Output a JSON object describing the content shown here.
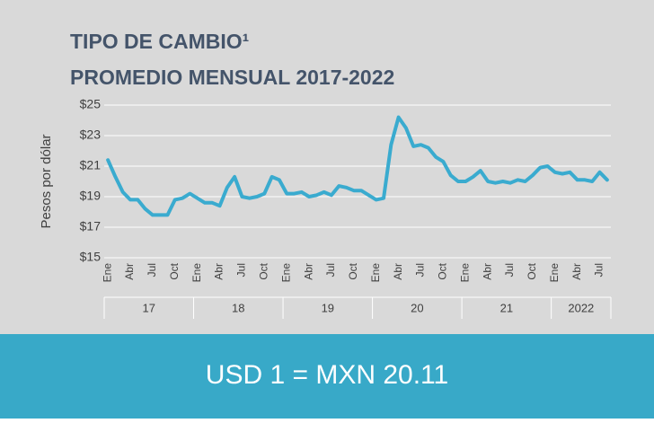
{
  "chart_data": {
    "type": "line",
    "title": "TIPO DE CAMBIO¹",
    "subtitle": "PROMEDIO MENSUAL 2017-2022",
    "y_label": "Pesos por dólar",
    "categories": [
      "Ene",
      null,
      null,
      "Abr",
      null,
      null,
      "Jul",
      null,
      null,
      "Oct",
      null,
      null,
      "Ene",
      null,
      null,
      "Abr",
      null,
      null,
      "Jul",
      null,
      null,
      "Oct",
      null,
      null,
      "Ene",
      null,
      null,
      "Abr",
      null,
      null,
      "Jul",
      null,
      null,
      "Oct",
      null,
      null,
      "Ene",
      null,
      null,
      "Abr",
      null,
      null,
      "Jul",
      null,
      null,
      "Oct",
      null,
      null,
      "Ene",
      null,
      null,
      "Abr",
      null,
      null,
      "Jul",
      null,
      null,
      "Oct",
      null,
      null,
      "Ene",
      null,
      null,
      "Abr",
      null,
      null,
      "Jul",
      null
    ],
    "year_groups": [
      "17",
      "18",
      "19",
      "20",
      "21",
      "2022"
    ],
    "color": "#3aabcf",
    "values": [
      21.4,
      20.3,
      19.3,
      18.8,
      18.8,
      18.2,
      17.8,
      17.8,
      17.8,
      18.8,
      18.9,
      19.2,
      18.9,
      18.6,
      18.6,
      18.4,
      19.6,
      20.3,
      19.0,
      18.9,
      19.0,
      19.2,
      20.3,
      20.1,
      19.2,
      19.2,
      19.3,
      19.0,
      19.1,
      19.3,
      19.1,
      19.7,
      19.6,
      19.4,
      19.4,
      19.1,
      18.8,
      18.9,
      22.4,
      24.2,
      23.5,
      22.3,
      22.4,
      22.2,
      21.6,
      21.3,
      20.4,
      20.0,
      20.0,
      20.3,
      20.7,
      20.0,
      19.9,
      20.0,
      19.9,
      20.1,
      20.0,
      20.4,
      20.9,
      21.0,
      20.6,
      20.5,
      20.6,
      20.1,
      20.1,
      20.0,
      20.6,
      20.1
    ],
    "ylim": [
      15,
      25
    ],
    "yticks": [
      {
        "value": 15,
        "label": "$15"
      },
      {
        "value": 17,
        "label": "$17"
      },
      {
        "value": 19,
        "label": "$19"
      },
      {
        "value": 21,
        "label": "$21"
      },
      {
        "value": 23,
        "label": "$23"
      },
      {
        "value": 25,
        "label": "$25"
      }
    ],
    "grid": true
  },
  "banner": "USD 1 = MXN 20.11"
}
